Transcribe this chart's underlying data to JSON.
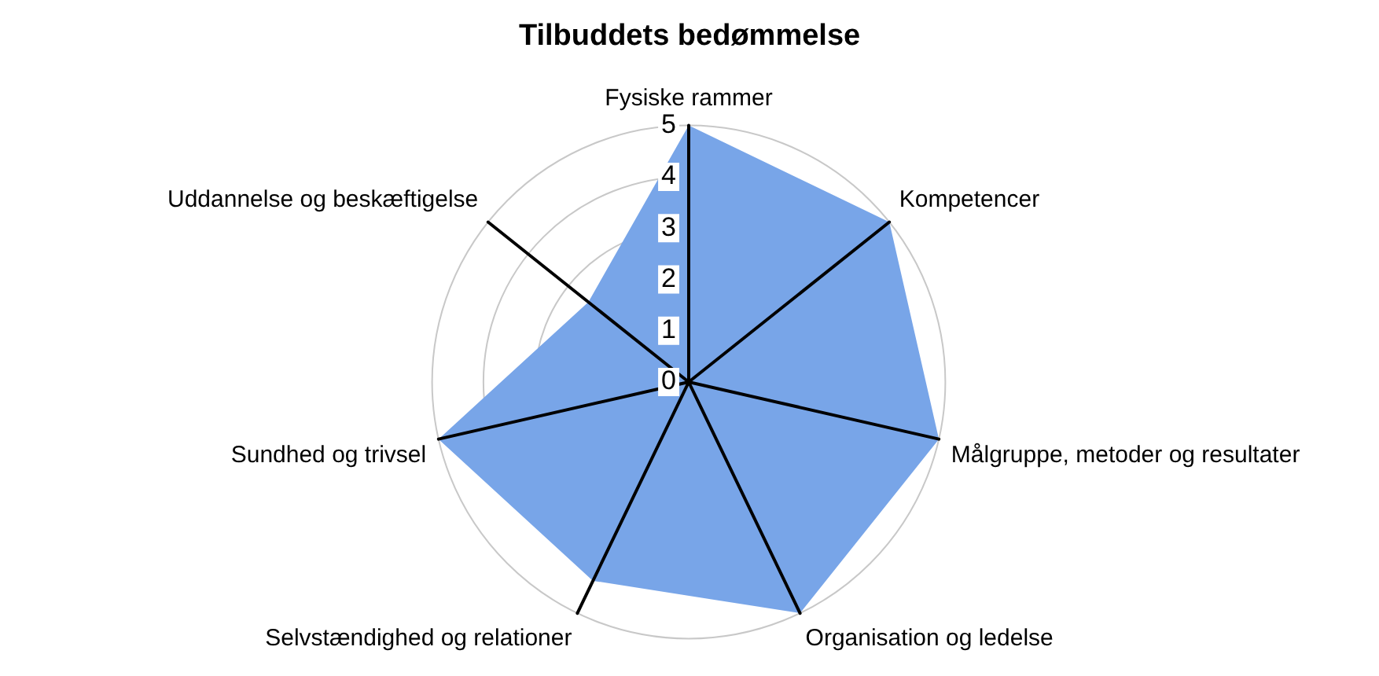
{
  "chart_data": {
    "type": "radar",
    "title": "Tilbuddets bedømmelse",
    "categories": [
      "Fysiske rammer",
      "Kompetencer",
      "Målgruppe, metoder og resultater",
      "Organisation og ledelse",
      "Selvstændighed og relationer",
      "Sundhed og trivsel",
      "Uddannelse og beskæftigelse"
    ],
    "series": [
      {
        "color": "#78a5e8",
        "values": [
          5,
          5,
          5,
          5,
          4.3,
          5,
          2.5
        ]
      }
    ],
    "ylim": [
      0,
      5
    ],
    "yticks": [
      0,
      1,
      2,
      3,
      4,
      5
    ],
    "grid": true,
    "legend": false,
    "marker": "none"
  }
}
